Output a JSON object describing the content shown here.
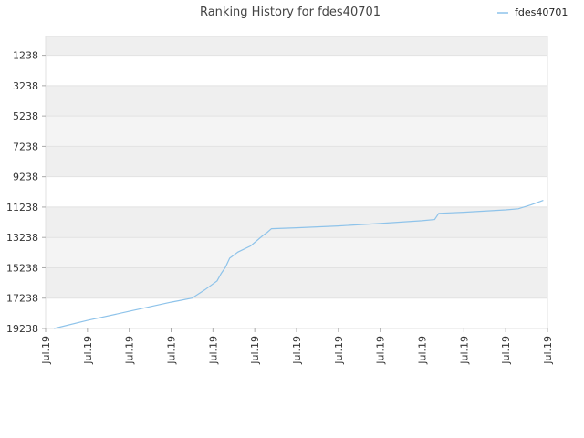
{
  "chart_data": {
    "type": "line",
    "title": "Ranking History for fdes40701",
    "xlabel": "",
    "ylabel": "",
    "y_inverted": true,
    "ylim": [
      19238,
      0
    ],
    "y_ticks": [
      1238,
      3238,
      5238,
      7238,
      9238,
      11238,
      13238,
      15238,
      17238,
      19238
    ],
    "x_ticks": [
      "Jul.19",
      "Jul.19",
      "Jul.19",
      "Jul.19",
      "Jul.19",
      "Jul.19",
      "Jul.19",
      "Jul.19",
      "Jul.19",
      "Jul.19",
      "Jul.19",
      "Jul.19",
      "Jul.19"
    ],
    "xlim": [
      0,
      12
    ],
    "grid": true,
    "legend_position": "top-right",
    "series": [
      {
        "name": "fdes40701",
        "color": "#8ec3ea",
        "points": [
          [
            0.2,
            19238
          ],
          [
            1.0,
            18700
          ],
          [
            2.0,
            18100
          ],
          [
            3.0,
            17500
          ],
          [
            3.2,
            17400
          ],
          [
            3.5,
            17238
          ],
          [
            3.8,
            16700
          ],
          [
            4.1,
            16100
          ],
          [
            4.2,
            15600
          ],
          [
            4.3,
            15200
          ],
          [
            4.4,
            14600
          ],
          [
            4.6,
            14200
          ],
          [
            4.9,
            13800
          ],
          [
            5.2,
            13100
          ],
          [
            5.3,
            12900
          ],
          [
            5.4,
            12660
          ],
          [
            6.0,
            12600
          ],
          [
            7.0,
            12480
          ],
          [
            8.0,
            12320
          ],
          [
            9.0,
            12140
          ],
          [
            9.3,
            12060
          ],
          [
            9.4,
            11650
          ],
          [
            10.0,
            11580
          ],
          [
            11.0,
            11420
          ],
          [
            11.3,
            11350
          ],
          [
            11.6,
            11100
          ],
          [
            11.9,
            10800
          ]
        ]
      }
    ]
  }
}
